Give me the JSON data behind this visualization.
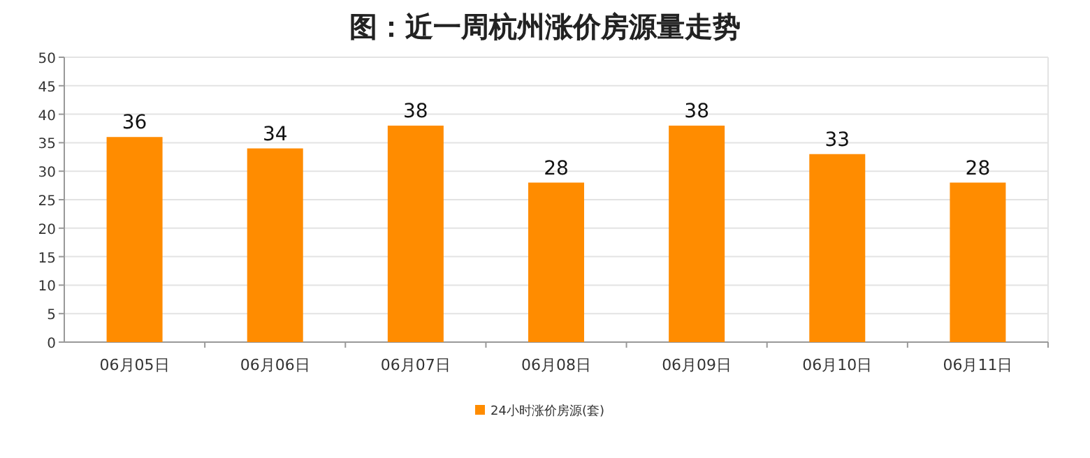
{
  "chart_data": {
    "type": "bar",
    "title": "图：近一周杭州涨价房源量走势",
    "categories": [
      "06月05日",
      "06月06日",
      "06月07日",
      "06月08日",
      "06月09日",
      "06月10日",
      "06月11日"
    ],
    "series": [
      {
        "name": "24小时涨价房源(套)",
        "color": "#ff8c00",
        "values": [
          36,
          34,
          38,
          28,
          38,
          33,
          28
        ]
      }
    ],
    "ylim": [
      0,
      50
    ],
    "yticks": [
      0,
      5,
      10,
      15,
      20,
      25,
      30,
      35,
      40,
      45,
      50
    ],
    "grid": "y",
    "data_labels": true,
    "legend": "bottom"
  }
}
